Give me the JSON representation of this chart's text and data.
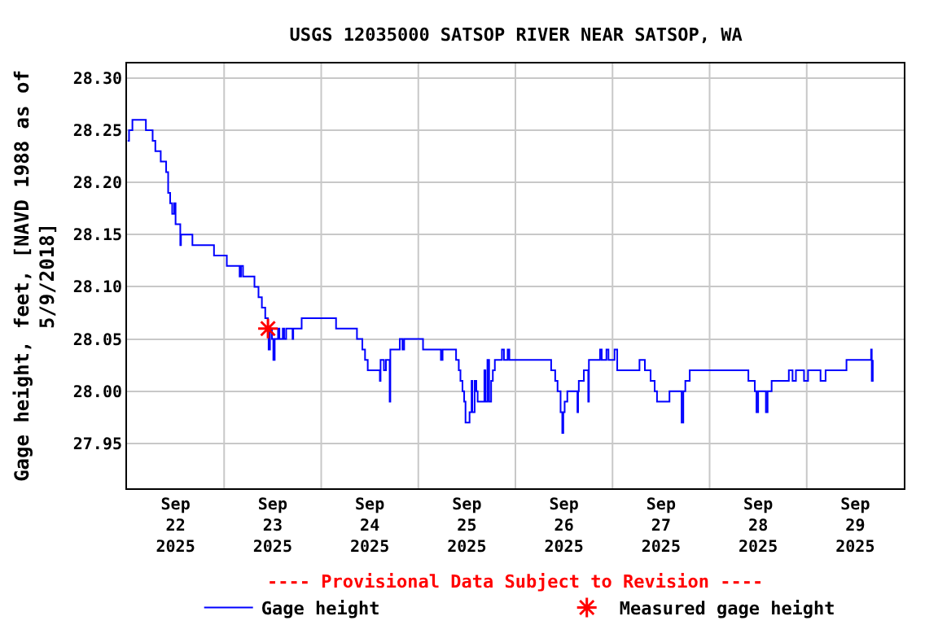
{
  "chart_data": {
    "type": "step",
    "title": "USGS 12035000 SATSOP RIVER NEAR SATSOP, WA",
    "ylabel": "Gage height, feet, [NAVD 1988 as of 5/9/2018]",
    "annotations": [
      "---- Provisional Data Subject to Revision ----"
    ],
    "xlim": [
      "2025-09-22T00:00",
      "2025-09-30T00:00"
    ],
    "xticks": [
      {
        "value": "2025-09-22T12:00",
        "label": "Sep\n22\n2025"
      },
      {
        "value": "2025-09-23T12:00",
        "label": "Sep\n23\n2025"
      },
      {
        "value": "2025-09-24T12:00",
        "label": "Sep\n24\n2025"
      },
      {
        "value": "2025-09-25T12:00",
        "label": "Sep\n25\n2025"
      },
      {
        "value": "2025-09-26T12:00",
        "label": "Sep\n26\n2025"
      },
      {
        "value": "2025-09-27T12:00",
        "label": "Sep\n27\n2025"
      },
      {
        "value": "2025-09-28T12:00",
        "label": "Sep\n28\n2025"
      },
      {
        "value": "2025-09-29T12:00",
        "label": "Sep\n29\n2025"
      },
      {
        "value": "2025-09-23T00:00",
        "label": null
      },
      {
        "value": "2025-09-24T00:00",
        "label": null
      },
      {
        "value": "2025-09-25T00:00",
        "label": null
      },
      {
        "value": "2025-09-26T00:00",
        "label": null
      },
      {
        "value": "2025-09-27T00:00",
        "label": null
      },
      {
        "value": "2025-09-28T00:00",
        "label": null
      },
      {
        "value": "2025-09-29T00:00",
        "label": null
      }
    ],
    "ylim": [
      27.907,
      28.314
    ],
    "yticks": [
      {
        "value": 27.95,
        "label": "27.95"
      },
      {
        "value": 28.0,
        "label": "28.00"
      },
      {
        "value": 28.05,
        "label": "28.05"
      },
      {
        "value": 28.1,
        "label": "28.10"
      },
      {
        "value": 28.15,
        "label": "28.15"
      },
      {
        "value": 28.2,
        "label": "28.20"
      },
      {
        "value": 28.25,
        "label": "28.25"
      },
      {
        "value": 28.3,
        "label": "28.30"
      }
    ],
    "grid": true,
    "legend": "bottom",
    "series": [
      {
        "name": "Gage height",
        "color": "#0000ff",
        "marker": "none",
        "x": [
          "2025-09-22T00:10",
          "2025-09-22T00:30",
          "2025-09-22T01:20",
          "2025-09-22T04:40",
          "2025-09-22T06:20",
          "2025-09-22T07:00",
          "2025-09-22T08:20",
          "2025-09-22T09:40",
          "2025-09-22T10:10",
          "2025-09-22T10:40",
          "2025-09-22T11:10",
          "2025-09-22T11:40",
          "2025-09-22T12:00",
          "2025-09-22T13:10",
          "2025-09-22T13:20",
          "2025-09-22T16:10",
          "2025-09-22T21:30",
          "2025-09-23T00:40",
          "2025-09-23T03:50",
          "2025-09-23T04:10",
          "2025-09-23T04:40",
          "2025-09-23T07:30",
          "2025-09-23T08:30",
          "2025-09-23T09:20",
          "2025-09-23T10:10",
          "2025-09-23T10:50",
          "2025-09-23T11:00",
          "2025-09-23T11:20",
          "2025-09-23T11:50",
          "2025-09-23T12:10",
          "2025-09-23T12:30",
          "2025-09-23T13:20",
          "2025-09-23T13:40",
          "2025-09-23T14:30",
          "2025-09-23T14:50",
          "2025-09-23T15:20",
          "2025-09-23T16:55",
          "2025-09-23T17:05",
          "2025-09-23T19:10",
          "2025-09-24T03:40",
          "2025-09-24T08:50",
          "2025-09-24T10:10",
          "2025-09-24T10:50",
          "2025-09-24T11:30",
          "2025-09-24T14:30",
          "2025-09-24T14:40",
          "2025-09-24T15:30",
          "2025-09-24T16:00",
          "2025-09-24T16:55",
          "2025-09-24T17:05",
          "2025-09-24T19:25",
          "2025-09-24T20:05",
          "2025-09-24T20:30",
          "2025-09-25T01:10",
          "2025-09-25T05:35",
          "2025-09-25T06:00",
          "2025-09-25T09:20",
          "2025-09-25T10:00",
          "2025-09-25T10:25",
          "2025-09-25T10:55",
          "2025-09-25T11:20",
          "2025-09-25T11:40",
          "2025-09-25T12:40",
          "2025-09-25T13:10",
          "2025-09-25T13:20",
          "2025-09-25T13:55",
          "2025-09-25T14:20",
          "2025-09-25T14:40",
          "2025-09-25T16:20",
          "2025-09-25T16:35",
          "2025-09-25T17:05",
          "2025-09-25T17:30",
          "2025-09-25T18:00",
          "2025-09-25T18:25",
          "2025-09-25T18:55",
          "2025-09-25T20:40",
          "2025-09-25T21:10",
          "2025-09-25T22:05",
          "2025-09-25T22:30",
          "2025-09-26T08:50",
          "2025-09-26T09:50",
          "2025-09-26T10:25",
          "2025-09-26T11:10",
          "2025-09-26T11:35",
          "2025-09-26T11:50",
          "2025-09-26T12:10",
          "2025-09-26T12:50",
          "2025-09-26T15:20",
          "2025-09-26T15:30",
          "2025-09-26T15:40",
          "2025-09-26T16:55",
          "2025-09-26T18:00",
          "2025-09-26T18:10",
          "2025-09-26T20:55",
          "2025-09-26T21:20",
          "2025-09-26T22:30",
          "2025-09-26T23:00",
          "2025-09-27T00:30",
          "2025-09-27T01:10",
          "2025-09-27T06:40",
          "2025-09-27T08:00",
          "2025-09-27T09:25",
          "2025-09-27T10:25",
          "2025-09-27T11:00",
          "2025-09-27T14:05",
          "2025-09-27T17:05",
          "2025-09-27T17:30",
          "2025-09-27T18:00",
          "2025-09-27T19:05",
          "2025-09-28T09:35",
          "2025-09-28T11:10",
          "2025-09-28T11:35",
          "2025-09-28T12:00",
          "2025-09-28T13:55",
          "2025-09-28T14:20",
          "2025-09-28T15:20",
          "2025-09-28T19:35",
          "2025-09-28T20:30",
          "2025-09-28T21:20",
          "2025-09-28T23:20",
          "2025-09-29T00:20",
          "2025-09-29T03:25",
          "2025-09-29T04:40",
          "2025-09-29T09:50",
          "2025-09-29T15:55",
          "2025-09-29T16:05",
          "2025-09-29T16:20"
        ],
        "values": [
          28.24,
          28.25,
          28.26,
          28.25,
          28.24,
          28.23,
          28.22,
          28.21,
          28.19,
          28.18,
          28.17,
          28.18,
          28.16,
          28.14,
          28.15,
          28.14,
          28.13,
          28.12,
          28.11,
          28.12,
          28.11,
          28.1,
          28.09,
          28.08,
          28.07,
          28.06,
          28.04,
          28.06,
          28.05,
          28.03,
          28.05,
          28.06,
          28.05,
          28.06,
          28.05,
          28.06,
          28.05,
          28.06,
          28.07,
          28.06,
          28.05,
          28.04,
          28.03,
          28.02,
          28.01,
          28.03,
          28.02,
          28.03,
          27.99,
          28.04,
          28.05,
          28.04,
          28.05,
          28.04,
          28.03,
          28.04,
          28.03,
          28.02,
          28.01,
          28.0,
          27.99,
          27.97,
          27.98,
          28.01,
          27.98,
          28.01,
          28.0,
          27.99,
          28.02,
          27.99,
          28.03,
          27.99,
          28.01,
          28.02,
          28.03,
          28.04,
          28.03,
          28.04,
          28.03,
          28.02,
          28.01,
          28.0,
          27.98,
          27.96,
          27.98,
          27.99,
          28.0,
          27.98,
          28.0,
          28.01,
          28.02,
          27.99,
          28.03,
          28.04,
          28.03,
          28.04,
          28.03,
          28.04,
          28.02,
          28.03,
          28.02,
          28.01,
          28.0,
          27.99,
          28.0,
          27.97,
          28.0,
          28.01,
          28.02,
          28.01,
          28.0,
          27.98,
          28.0,
          27.98,
          28.0,
          28.01,
          28.02,
          28.01,
          28.02,
          28.01,
          28.02,
          28.01,
          28.02,
          28.03,
          28.04,
          28.01,
          28.03
        ]
      },
      {
        "name": "Measured gage height",
        "color": "#ff0000",
        "type": "scatter",
        "marker": "cross",
        "x": [
          "2025-09-23T10:50"
        ],
        "values": [
          28.06
        ]
      }
    ]
  }
}
